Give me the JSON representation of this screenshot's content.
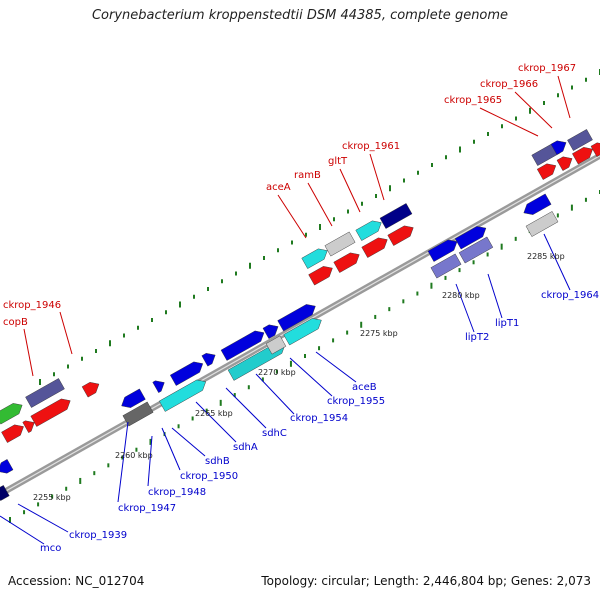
{
  "title": "Corynebacterium kroppenstedtii DSM 44385, complete genome",
  "footer": {
    "accession": "Accession: NC_012704",
    "topology": "Topology: circular; Length: 2,446,804 bp; Genes: 2,073"
  },
  "colors": {
    "backbone": "#9a9a9a",
    "tick": "#1f7a1f",
    "label_forward": "#cc0000",
    "label_reverse": "#0000cc",
    "kbp_label": "#222222"
  },
  "kbp_labels": [
    "2255 kbp",
    "2260 kbp",
    "2265 kbp",
    "2270 kbp",
    "2275 kbp",
    "2280 kbp",
    "2285 kbp"
  ],
  "labels_forward": [
    "ckrop_1946",
    "copB",
    "aceA",
    "ramB",
    "gltT",
    "ckrop_1961",
    "ckrop_1965",
    "ckrop_1966",
    "ckrop_1967"
  ],
  "labels_reverse": [
    "mco",
    "ckrop_1939",
    "ckrop_1947",
    "ckrop_1948",
    "sdhB",
    "ckrop_1950",
    "sdhA",
    "sdhC",
    "ckrop_1954",
    "ckrop_1955",
    "aceB",
    "lipT2",
    "lipT1",
    "ckrop_1964"
  ]
}
